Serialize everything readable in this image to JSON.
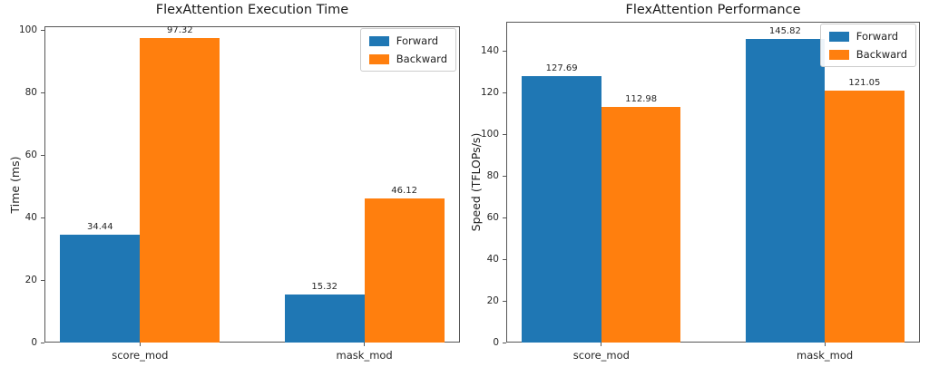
{
  "colors": {
    "forward": "#1f77b4",
    "backward": "#ff7f0e",
    "axis": "#565656",
    "text": "#262626",
    "legend_border": "#cccccc",
    "background": "#ffffff"
  },
  "chart_data": [
    {
      "type": "bar",
      "title": "FlexAttention Execution Time",
      "xlabel": "",
      "ylabel": "Time (ms)",
      "categories": [
        "score_mod",
        "mask_mod"
      ],
      "series": [
        {
          "name": "Forward",
          "color": "#1f77b4",
          "values": [
            34.44,
            15.32
          ]
        },
        {
          "name": "Backward",
          "color": "#ff7f0e",
          "values": [
            97.32,
            46.12
          ]
        }
      ],
      "ylim": [
        0,
        101.2
      ],
      "yticks": [
        0,
        20,
        40,
        60,
        80,
        100
      ],
      "legend_position": "upper right",
      "grid": false,
      "bar_value_labels": true
    },
    {
      "type": "bar",
      "title": "FlexAttention Performance",
      "xlabel": "",
      "ylabel": "Speed (TFLOPs/s)",
      "categories": [
        "score_mod",
        "mask_mod"
      ],
      "series": [
        {
          "name": "Forward",
          "color": "#1f77b4",
          "values": [
            127.69,
            145.82
          ]
        },
        {
          "name": "Backward",
          "color": "#ff7f0e",
          "values": [
            112.98,
            121.05
          ]
        }
      ],
      "ylim": [
        0,
        154
      ],
      "yticks": [
        0,
        20,
        40,
        60,
        80,
        100,
        120,
        140
      ],
      "legend_position": "upper right",
      "grid": false,
      "bar_value_labels": true
    }
  ]
}
